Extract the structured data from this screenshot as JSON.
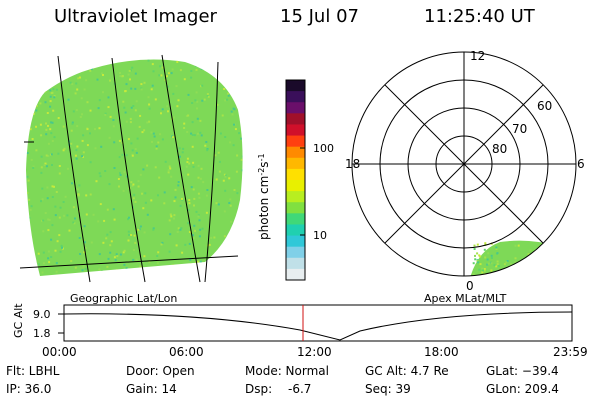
{
  "header": {
    "instrument": "Ultraviolet Imager",
    "date": "15 Jul 07",
    "time": "11:25:40 UT"
  },
  "colorbar": {
    "label": "photon cm",
    "exp1": "-2",
    "unit_s": "s",
    "exp2": "-1",
    "ticks": [
      "100",
      "10"
    ],
    "colors": [
      "#1a0a2a",
      "#3a0f5a",
      "#6a0f6a",
      "#a0102a",
      "#d0102a",
      "#ff4010",
      "#ff8a00",
      "#ffb800",
      "#ffe000",
      "#e8f000",
      "#b8ee20",
      "#80e040",
      "#40d878",
      "#20d0b0",
      "#30c8d8",
      "#80d0e8",
      "#c0e0e8",
      "#e8eef0"
    ]
  },
  "left_panel": {
    "label": "Geographic Lat/Lon",
    "fill_color": "#7ed957"
  },
  "polar": {
    "label": "Apex MLat/MLT",
    "mlt_labels": [
      "12",
      "18",
      "6",
      "0"
    ],
    "lat_labels": [
      "60",
      "70",
      "80"
    ]
  },
  "timeline": {
    "axis_label": "GC Alt",
    "y_ticks": [
      "9.0",
      "1.8"
    ],
    "x_ticks": [
      "00:00",
      "06:00",
      "12:00",
      "18:00",
      "23:59"
    ],
    "marker_color": "#d01010"
  },
  "info": {
    "flt": "Flt: LBHL",
    "ip": "IP: 36.0",
    "door": "Door: Open",
    "gain": "Gain: 14",
    "mode": "Mode: Normal",
    "dsp_label": "Dsp:",
    "dsp_value": "-6.7",
    "gcalt": "GC Alt: 4.7 Re",
    "seq": "Seq: 39",
    "glat": "GLat: −39.4",
    "glon": "GLon: 209.4"
  }
}
